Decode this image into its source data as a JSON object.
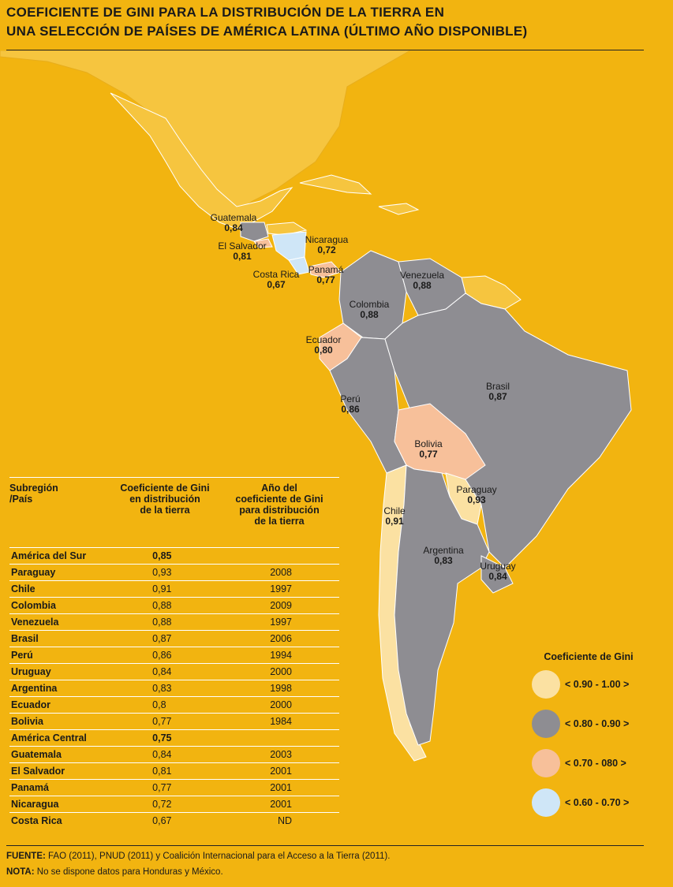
{
  "title": {
    "line1": "Coeficiente de Gini para la distribución de la tierra en",
    "line2": "una selección de países de América Latina (último año disponible)"
  },
  "colors": {
    "background": "#F2B410",
    "land_other": "#F6C53F",
    "class_090_100": "#FBE1A2",
    "class_080_090": "#8E8D92",
    "class_070_080": "#F7C09A",
    "class_060_070": "#CFE6F7"
  },
  "map_labels": [
    {
      "name": "Guatemala",
      "value": "0,84"
    },
    {
      "name": "El Salvador",
      "value": "0,81"
    },
    {
      "name": "Nicaragua",
      "value": "0,72"
    },
    {
      "name": "Costa Rica",
      "value": "0,67"
    },
    {
      "name": "Panamá",
      "value": "0,77"
    },
    {
      "name": "Venezuela",
      "value": "0,88"
    },
    {
      "name": "Colombia",
      "value": "0,88"
    },
    {
      "name": "Ecuador",
      "value": "0,80"
    },
    {
      "name": "Perú",
      "value": "0,86"
    },
    {
      "name": "Brasil",
      "value": "0,87"
    },
    {
      "name": "Bolivia",
      "value": "0,77"
    },
    {
      "name": "Paraguay",
      "value": "0,93"
    },
    {
      "name": "Chile",
      "value": "0,91"
    },
    {
      "name": "Argentina",
      "value": "0,83"
    },
    {
      "name": "Uruguay",
      "value": "0,84"
    }
  ],
  "table": {
    "headers": [
      "Subregión\n/País",
      "Coeficiente de Gini\nen distribución\nde la tierra",
      "Año del\ncoeficiente de Gini\npara distribución\nde la tierra"
    ],
    "rows": [
      {
        "country": "América del Sur",
        "gini": "0,85",
        "year": "",
        "subregion": true
      },
      {
        "country": "Paraguay",
        "gini": "0,93",
        "year": "2008"
      },
      {
        "country": "Chile",
        "gini": "0,91",
        "year": "1997"
      },
      {
        "country": "Colombia",
        "gini": "0,88",
        "year": "2009"
      },
      {
        "country": "Venezuela",
        "gini": "0,88",
        "year": "1997"
      },
      {
        "country": "Brasil",
        "gini": "0,87",
        "year": "2006"
      },
      {
        "country": "Perú",
        "gini": "0,86",
        "year": "1994"
      },
      {
        "country": "Uruguay",
        "gini": "0,84",
        "year": "2000"
      },
      {
        "country": "Argentina",
        "gini": "0,83",
        "year": "1998"
      },
      {
        "country": "Ecuador",
        "gini": "0,8",
        "year": "2000"
      },
      {
        "country": "Bolivia",
        "gini": "0,77",
        "year": "1984"
      },
      {
        "country": "América Central",
        "gini": "0,75",
        "year": "",
        "subregion": true
      },
      {
        "country": "Guatemala",
        "gini": "0,84",
        "year": "2003"
      },
      {
        "country": "El Salvador",
        "gini": "0,81",
        "year": "2001"
      },
      {
        "country": "Panamá",
        "gini": "0,77",
        "year": "2001"
      },
      {
        "country": "Nicaragua",
        "gini": "0,72",
        "year": "2001"
      },
      {
        "country": "Costa Rica",
        "gini": "0,67",
        "year": "ND"
      }
    ]
  },
  "legend": {
    "title": "Coeficiente de Gini",
    "items": [
      {
        "label": "< 0.90 - 1.00 >",
        "color": "#FBE1A2"
      },
      {
        "label": "< 0.80 - 0.90 >",
        "color": "#8E8D92"
      },
      {
        "label": "< 0.70 - 080 >",
        "color": "#F7C09A"
      },
      {
        "label": "< 0.60 - 0.70 >",
        "color": "#CFE6F7"
      }
    ]
  },
  "footer": {
    "source_label": "FUENTE:",
    "source_text": " FAO (2011), PNUD (2011) y Coalición Internacional para el Acceso a la Tierra (2011).",
    "note_label": "NOTA:",
    "note_text": " No se dispone datos para Honduras y México."
  }
}
